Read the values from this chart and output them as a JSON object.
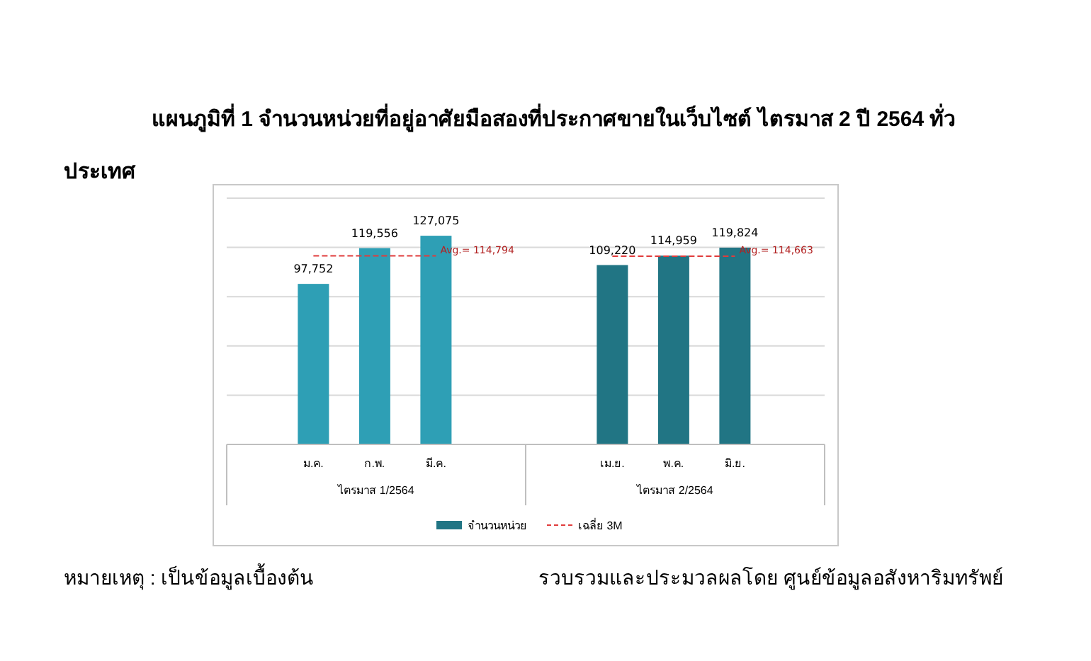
{
  "chart_data": {
    "type": "bar",
    "title": "แผนภูมิที่ 1 จำนวนหน่วยที่อยู่อาศัยมือสองที่ประกาศขายในเว็บไซต์ ไตรมาส 2 ปี 2564 ทั่วประเทศ",
    "categories": [
      "ม.ค.",
      "ก.พ.",
      "มี.ค.",
      "เม.ย.",
      "พ.ค.",
      "มิ.ย."
    ],
    "series": [
      {
        "name": "จำนวนหน่วย",
        "color": "#217584",
        "colors": [
          "#2e9fb5",
          "#2e9fb5",
          "#2e9fb5",
          "#217584",
          "#217584",
          "#217584"
        ],
        "values": [
          97752,
          119556,
          127075,
          109220,
          114959,
          119824
        ],
        "value_labels": [
          "97,752",
          "119,556",
          "127,075",
          "109,220",
          "114,959",
          "119,824"
        ]
      },
      {
        "name": "เฉลี่ย 3M",
        "type": "line",
        "line_style": "dashed",
        "color": "#e03c3c",
        "values": [
          114794,
          114794,
          114794,
          114663,
          114663,
          114663
        ],
        "value_labels": [
          null,
          null,
          "Avg.= 114,794",
          null,
          null,
          "Avg.= 114,663"
        ]
      }
    ],
    "tick_labels": "x",
    "grid": "y",
    "legend": "bottom",
    "annotations": [
      "ไตรมาส 1/2564",
      "ไตรมาส 2/2564",
      "หมายเหตุ : เป็นข้อมูลเบื้องต้น",
      "รวบรวมและประมวลผลโดย ศูนย์ข้อมูลอสังหาริมทรัพย์"
    ]
  }
}
